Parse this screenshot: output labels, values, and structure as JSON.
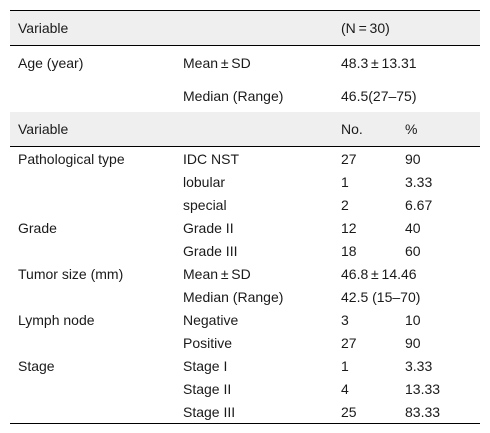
{
  "header": {
    "col1": "Variable",
    "col3": "(N = 30)"
  },
  "age": {
    "label": "Age (year)",
    "rows": [
      {
        "stat": "Mean ± SD",
        "value": "48.3 ± 13.31"
      },
      {
        "stat": "Median (Range)",
        "value": "46.5(27–75)"
      }
    ]
  },
  "subheader": {
    "col1": "Variable",
    "col3": "No.",
    "col4": "%"
  },
  "groups": [
    {
      "label": "Pathological type",
      "rows": [
        {
          "cat": "IDC NST",
          "no": "27",
          "pct": "90"
        },
        {
          "cat": "lobular",
          "no": "1",
          "pct": "3.33"
        },
        {
          "cat": "special",
          "no": "2",
          "pct": "6.67"
        }
      ]
    },
    {
      "label": "Grade",
      "rows": [
        {
          "cat": "Grade II",
          "no": "12",
          "pct": "40"
        },
        {
          "cat": "Grade III",
          "no": "18",
          "pct": "60"
        }
      ]
    },
    {
      "label": "Tumor size (mm)",
      "rows": [
        {
          "cat": "Mean ± SD",
          "no": "46.8 ± 14.46",
          "pct": ""
        },
        {
          "cat": "Median (Range)",
          "no": "42.5 (15–70)",
          "pct": ""
        }
      ]
    },
    {
      "label": "Lymph node",
      "rows": [
        {
          "cat": "Negative",
          "no": "3",
          "pct": "10"
        },
        {
          "cat": "Positive",
          "no": "27",
          "pct": "90"
        }
      ]
    },
    {
      "label": "Stage",
      "rows": [
        {
          "cat": "Stage I",
          "no": "1",
          "pct": "3.33"
        },
        {
          "cat": "Stage II",
          "no": "4",
          "pct": "13.33"
        },
        {
          "cat": "Stage III",
          "no": "25",
          "pct": "83.33"
        }
      ]
    }
  ]
}
